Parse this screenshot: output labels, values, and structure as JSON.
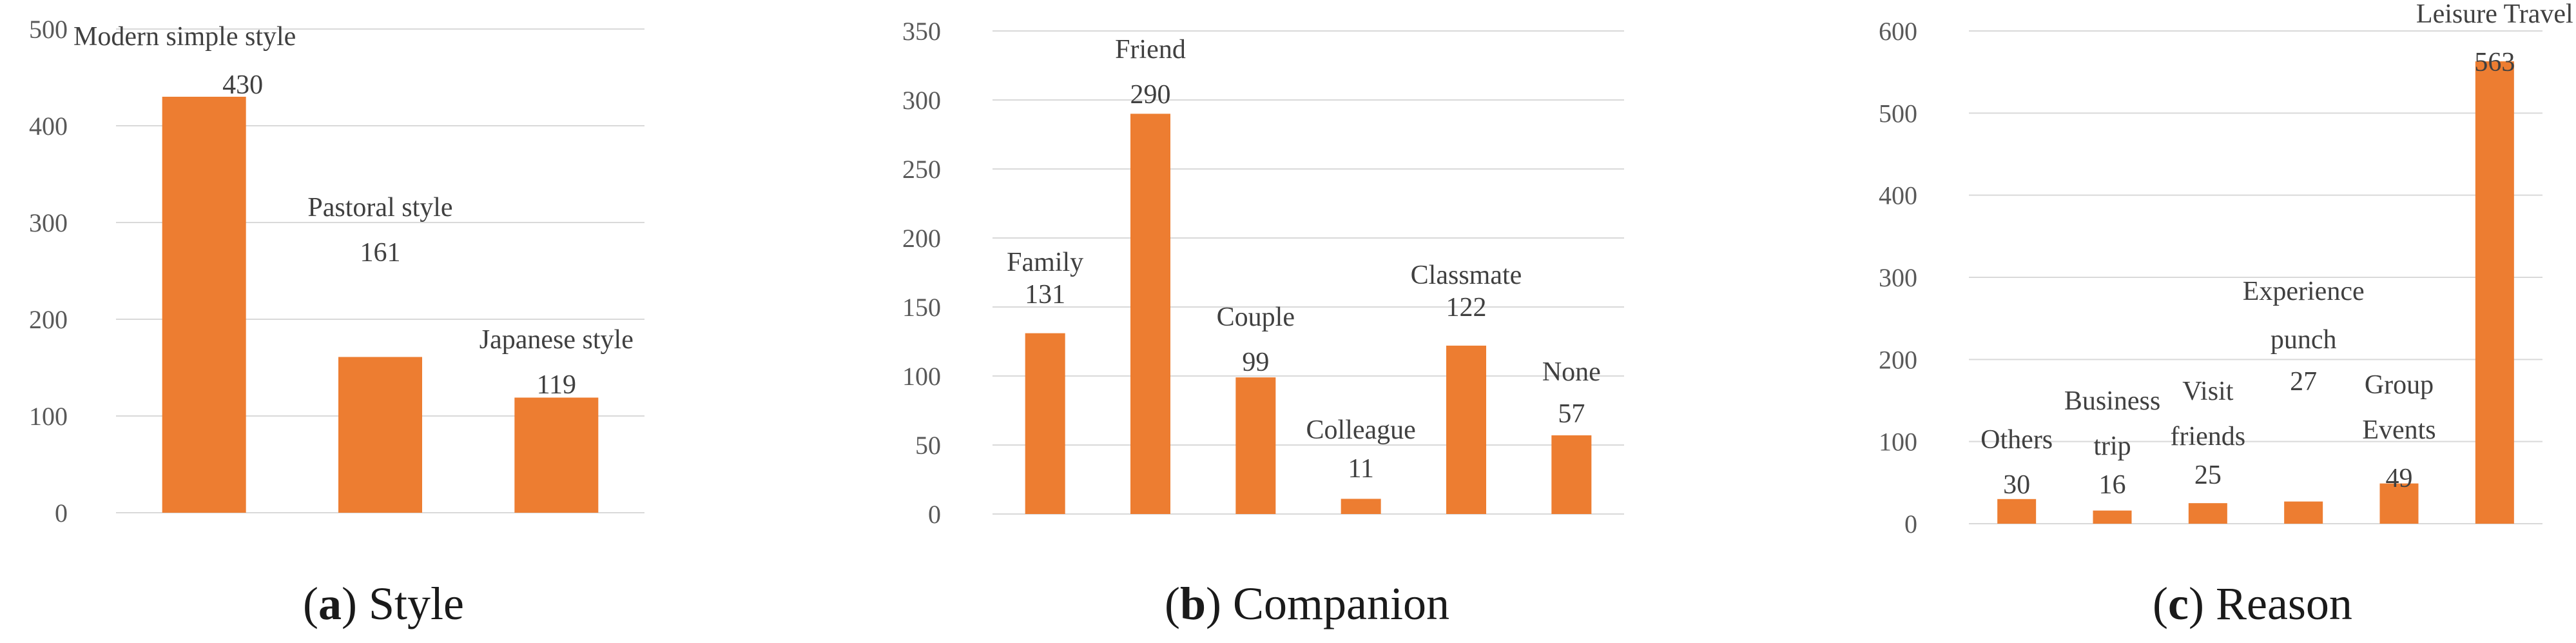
{
  "figure": {
    "bar_color": "#ed7d31",
    "grid": true
  },
  "chart_data": [
    {
      "type": "bar",
      "caption_letter": "a",
      "caption_text": "Style",
      "categories": [
        "Modern simple style",
        "Pastoral style",
        "Japanese style"
      ],
      "values": [
        430,
        161,
        119
      ],
      "ylim": [
        0,
        500
      ],
      "yticks": [
        0,
        100,
        200,
        300,
        400,
        500
      ],
      "xlabel": "",
      "ylabel": ""
    },
    {
      "type": "bar",
      "caption_letter": "b",
      "caption_text": "Companion",
      "categories": [
        "Family",
        "Friend",
        "Couple",
        "Colleague",
        "Classmate",
        "None"
      ],
      "values": [
        131,
        290,
        99,
        11,
        122,
        57
      ],
      "ylim": [
        0,
        350
      ],
      "yticks": [
        0,
        50,
        100,
        150,
        200,
        250,
        300,
        350
      ],
      "xlabel": "",
      "ylabel": ""
    },
    {
      "type": "bar",
      "caption_letter": "c",
      "caption_text": "Reason",
      "categories": [
        "Others",
        "Business trip",
        "Visit friends",
        "Experience punch",
        "Group Events",
        "Leisure Travel"
      ],
      "values": [
        30,
        16,
        25,
        27,
        49,
        563
      ],
      "ylim": [
        0,
        600
      ],
      "yticks": [
        0,
        100,
        200,
        300,
        400,
        500,
        600
      ],
      "xlabel": "",
      "ylabel": ""
    }
  ]
}
